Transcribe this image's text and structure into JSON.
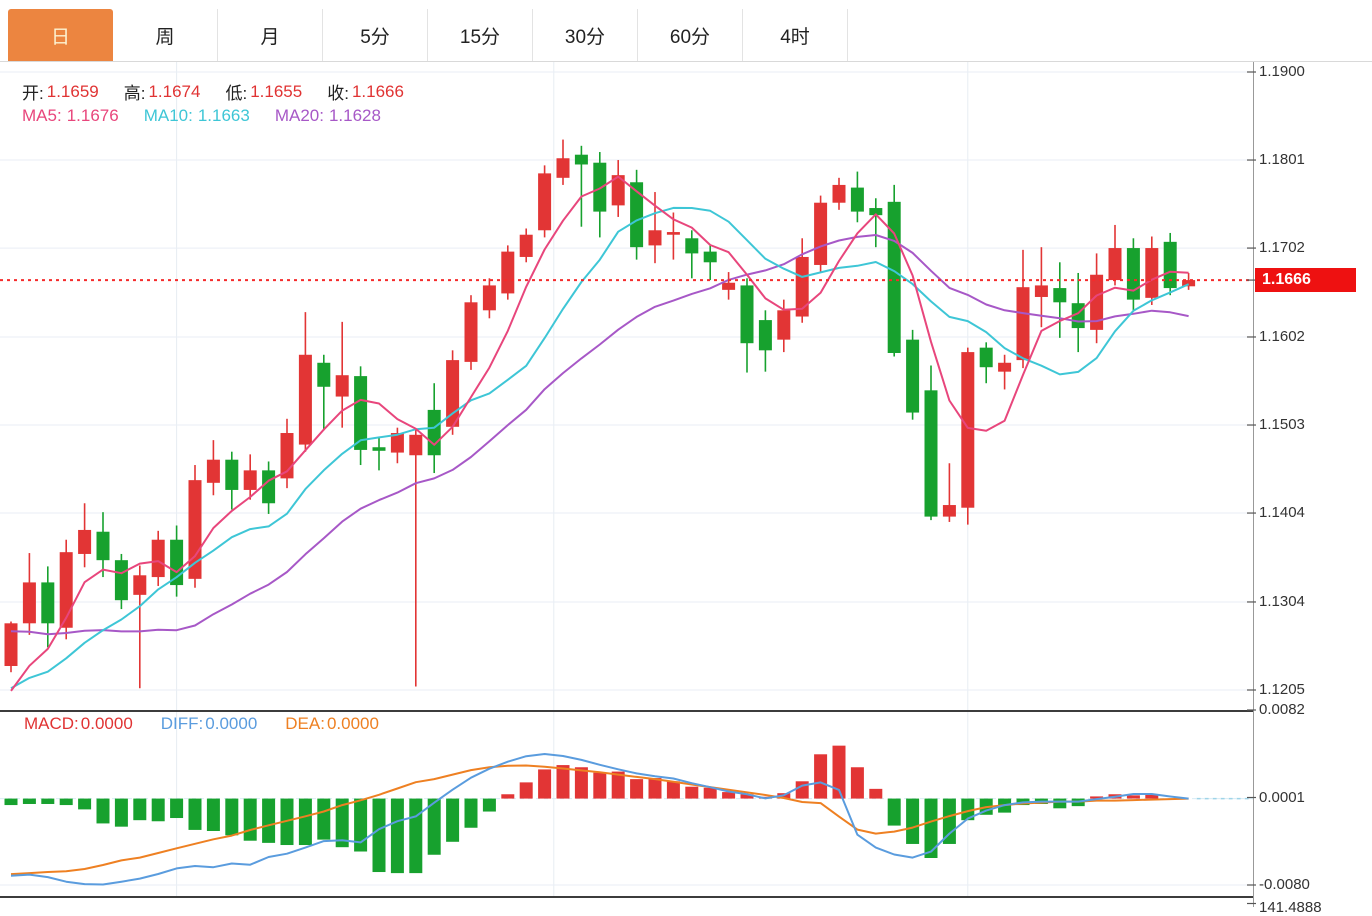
{
  "tabbar": {
    "active_key": "day",
    "tabs": [
      {
        "key": "day",
        "label": "日"
      },
      {
        "key": "week",
        "label": "周"
      },
      {
        "key": "month",
        "label": "月"
      },
      {
        "key": "5min",
        "label": "5分"
      },
      {
        "key": "15min",
        "label": "15分"
      },
      {
        "key": "30min",
        "label": "30分"
      },
      {
        "key": "60min",
        "label": "60分"
      },
      {
        "key": "4hour",
        "label": "4时"
      }
    ]
  },
  "legend": {
    "open_label": "开:",
    "open_value": "1.1659",
    "high_label": "高:",
    "high_value": "1.1674",
    "low_label": "低:",
    "low_value": "1.1655",
    "close_label": "收:",
    "close_value": "1.1666",
    "ma5_label": "MA5:",
    "ma5_value": "1.1676",
    "ma10_label": "MA10:",
    "ma10_value": "1.1663",
    "ma20_label": "MA20:",
    "ma20_value": "1.1628"
  },
  "macd_legend": {
    "macd_label": "MACD:",
    "macd_value": "0.0000",
    "diff_label": "DIFF:",
    "diff_value": "0.0000",
    "dea_label": "DEA:",
    "dea_value": "0.0000"
  },
  "price_axis": {
    "labels": [
      "1.1900",
      "1.1801",
      "1.1702",
      "1.1602",
      "1.1503",
      "1.1404",
      "1.1304",
      "1.1205"
    ],
    "values": [
      1.19,
      1.1801,
      1.1702,
      1.1602,
      1.1503,
      1.1404,
      1.1304,
      1.1205
    ],
    "current_label": "1.1666",
    "current_value": 1.1666
  },
  "macd_axis": {
    "labels": [
      "0.0082",
      "0.0001",
      "-0.0080"
    ],
    "values": [
      0.0082,
      0.0001,
      -0.008
    ],
    "clipped_label": "141.4888"
  },
  "colors": {
    "up": "#e23535",
    "down": "#17a12e",
    "ma5": "#e8467c",
    "ma10": "#3ec6d6",
    "ma20": "#a758c7",
    "diff": "#5a9cde",
    "dea": "#ee8022",
    "price_line": "#f52b2b",
    "badge_bg": "#ee1111",
    "grid": "#e9eef5",
    "vgrid": "#e7ecf2",
    "axis_line": "#999999",
    "separator": "#3c3c3c",
    "tick": "#555555",
    "zero_dash": "#9fd4e8"
  },
  "chart_data": {
    "type": "candlestick_with_macd",
    "timeframe": "日",
    "price_axis_range": [
      1.1205,
      1.19
    ],
    "macd_axis_range": [
      -0.008,
      0.0082
    ],
    "current_price": 1.1666,
    "time_gridline_indices": [
      9,
      29.5,
      52
    ],
    "candles_ohlc": [
      [
        1.1232,
        1.1282,
        1.1225,
        1.128
      ],
      [
        1.128,
        1.1359,
        1.1267,
        1.1326
      ],
      [
        1.1326,
        1.1344,
        1.1253,
        1.128
      ],
      [
        1.1275,
        1.1374,
        1.1262,
        1.136
      ],
      [
        1.1358,
        1.1415,
        1.1343,
        1.1385
      ],
      [
        1.1383,
        1.1405,
        1.1332,
        1.1351
      ],
      [
        1.1351,
        1.1358,
        1.1296,
        1.1306
      ],
      [
        1.1312,
        1.1345,
        1.1207,
        1.1334
      ],
      [
        1.1332,
        1.1384,
        1.1322,
        1.1374
      ],
      [
        1.1374,
        1.139,
        1.131,
        1.1323
      ],
      [
        1.133,
        1.1458,
        1.132,
        1.1441
      ],
      [
        1.1438,
        1.1486,
        1.1424,
        1.1464
      ],
      [
        1.1464,
        1.1473,
        1.1408,
        1.143
      ],
      [
        1.143,
        1.147,
        1.1419,
        1.1452
      ],
      [
        1.1452,
        1.1462,
        1.1403,
        1.1415
      ],
      [
        1.1443,
        1.151,
        1.1432,
        1.1494
      ],
      [
        1.1481,
        1.163,
        1.1473,
        1.1582
      ],
      [
        1.1573,
        1.1582,
        1.1497,
        1.1546
      ],
      [
        1.1535,
        1.1619,
        1.15,
        1.1559
      ],
      [
        1.1558,
        1.1569,
        1.1458,
        1.1475
      ],
      [
        1.1478,
        1.149,
        1.1452,
        1.1474
      ],
      [
        1.1472,
        1.15,
        1.146,
        1.1494
      ],
      [
        1.1469,
        1.1498,
        1.1209,
        1.1492
      ],
      [
        1.152,
        1.155,
        1.1449,
        1.1469
      ],
      [
        1.1501,
        1.1587,
        1.1492,
        1.1576
      ],
      [
        1.1574,
        1.1649,
        1.1565,
        1.1641
      ],
      [
        1.1632,
        1.1668,
        1.1623,
        1.166
      ],
      [
        1.1651,
        1.1705,
        1.1644,
        1.1698
      ],
      [
        1.1692,
        1.1724,
        1.1686,
        1.1717
      ],
      [
        1.1722,
        1.1795,
        1.1714,
        1.1786
      ],
      [
        1.1781,
        1.1824,
        1.1773,
        1.1803
      ],
      [
        1.1807,
        1.1817,
        1.1726,
        1.1796
      ],
      [
        1.1798,
        1.181,
        1.1714,
        1.1743
      ],
      [
        1.175,
        1.1801,
        1.1737,
        1.1784
      ],
      [
        1.1776,
        1.179,
        1.1689,
        1.1703
      ],
      [
        1.1705,
        1.1765,
        1.1685,
        1.1722
      ],
      [
        1.1717,
        1.1742,
        1.1689,
        1.172
      ],
      [
        1.1713,
        1.1722,
        1.1668,
        1.1696
      ],
      [
        1.1698,
        1.1705,
        1.1666,
        1.1686
      ],
      [
        1.1655,
        1.1675,
        1.1644,
        1.1663
      ],
      [
        1.166,
        1.1668,
        1.1562,
        1.1595
      ],
      [
        1.1621,
        1.1632,
        1.1563,
        1.1587
      ],
      [
        1.1599,
        1.1644,
        1.1585,
        1.1632
      ],
      [
        1.1625,
        1.1713,
        1.1618,
        1.1692
      ],
      [
        1.1683,
        1.1761,
        1.1675,
        1.1753
      ],
      [
        1.1753,
        1.1781,
        1.1745,
        1.1773
      ],
      [
        1.177,
        1.1788,
        1.1731,
        1.1743
      ],
      [
        1.1747,
        1.1758,
        1.1703,
        1.1739
      ],
      [
        1.1754,
        1.1773,
        1.158,
        1.1584
      ],
      [
        1.1599,
        1.161,
        1.1509,
        1.1517
      ],
      [
        1.1542,
        1.157,
        1.1396,
        1.14
      ],
      [
        1.14,
        1.146,
        1.1394,
        1.1413
      ],
      [
        1.141,
        1.159,
        1.1391,
        1.1585
      ],
      [
        1.159,
        1.1596,
        1.155,
        1.1568
      ],
      [
        1.1563,
        1.1582,
        1.1543,
        1.1573
      ],
      [
        1.1576,
        1.17,
        1.1567,
        1.1658
      ],
      [
        1.1647,
        1.1703,
        1.1613,
        1.166
      ],
      [
        1.1657,
        1.1686,
        1.1601,
        1.1641
      ],
      [
        1.164,
        1.1674,
        1.1585,
        1.1612
      ],
      [
        1.161,
        1.1696,
        1.1595,
        1.1672
      ],
      [
        1.1666,
        1.1728,
        1.166,
        1.1702
      ],
      [
        1.1702,
        1.1713,
        1.1632,
        1.1644
      ],
      [
        1.1646,
        1.1715,
        1.1638,
        1.1702
      ],
      [
        1.1709,
        1.1719,
        1.1649,
        1.1657
      ],
      [
        1.1659,
        1.1674,
        1.1655,
        1.1666
      ]
    ],
    "ma_seed_closes": [
      1.1335,
      1.1335,
      1.1335,
      1.1335,
      1.1335,
      1.1335,
      1.1335,
      1.1335,
      1.1335,
      1.1335,
      1.121,
      1.121,
      1.121,
      1.121,
      1.121,
      1.1185,
      1.1185,
      1.1185,
      1.1185
    ],
    "ma_periods": [
      5,
      10,
      20
    ],
    "macd_histogram": [
      -0.0006,
      -0.0005,
      -0.0005,
      -0.0006,
      -0.001,
      -0.0023,
      -0.0026,
      -0.002,
      -0.0021,
      -0.0018,
      -0.0029,
      -0.003,
      -0.0034,
      -0.0039,
      -0.0041,
      -0.0043,
      -0.0043,
      -0.0038,
      -0.0045,
      -0.0049,
      -0.0068,
      -0.0069,
      -0.0069,
      -0.0052,
      -0.004,
      -0.0027,
      -0.0012,
      0.0004,
      0.0015,
      0.0027,
      0.0031,
      0.0029,
      0.0024,
      0.0025,
      0.0018,
      0.0019,
      0.0016,
      0.0011,
      0.001,
      0.0006,
      0.0004,
      0.0001,
      0.0005,
      0.0016,
      0.0041,
      0.0049,
      0.0029,
      0.0009,
      -0.0025,
      -0.0042,
      -0.0055,
      -0.0042,
      -0.002,
      -0.0015,
      -0.0013,
      -0.0006,
      -0.0005,
      -0.0009,
      -0.0007,
      0.0002,
      0.0004,
      0.0003,
      0.0004,
      0.0,
      0.0
    ],
    "diff_line": [
      -0.00715,
      -0.00704,
      -0.00727,
      -0.00769,
      -0.00792,
      -0.00795,
      -0.00769,
      -0.00741,
      -0.00698,
      -0.00646,
      -0.00624,
      -0.00635,
      -0.00601,
      -0.00612,
      -0.00541,
      -0.0051,
      -0.00454,
      -0.00394,
      -0.00385,
      -0.00406,
      -0.00283,
      -0.00209,
      -0.00165,
      -0.00038,
      0.00082,
      0.00193,
      0.00277,
      0.00341,
      0.00392,
      0.00413,
      0.00394,
      0.00358,
      0.00313,
      0.00271,
      0.00233,
      0.00207,
      0.00186,
      0.00142,
      0.00105,
      0.00066,
      0.0004,
      2e-05,
      0.0003,
      0.0012,
      0.0015,
      0.0008,
      -0.00334,
      -0.00454,
      -0.00518,
      -0.00546,
      -0.00491,
      -0.00324,
      -0.00185,
      -0.00111,
      -0.0006,
      -0.00035,
      -0.00028,
      -0.00028,
      -0.00028,
      -5e-05,
      0.00017,
      0.00042,
      0.00042,
      0.00019,
      0.0
    ],
    "dea_line": [
      -0.00699,
      -0.0069,
      -0.0068,
      -0.00673,
      -0.00652,
      -0.00615,
      -0.00572,
      -0.00546,
      -0.00504,
      -0.0046,
      -0.00419,
      -0.00377,
      -0.00343,
      -0.00291,
      -0.00247,
      -0.00206,
      -0.00164,
      -0.0012,
      -0.0006,
      -0.00016,
      0.00035,
      0.00093,
      0.00152,
      0.0018,
      0.00222,
      0.00264,
      0.0029,
      0.00303,
      0.00306,
      0.00294,
      0.00278,
      0.00261,
      0.00243,
      0.00222,
      0.00201,
      0.0018,
      0.00155,
      0.0013,
      0.00106,
      0.00081,
      0.00057,
      0.00033,
      5e-05,
      -0.00032,
      -0.00042,
      -0.00167,
      -0.00287,
      -0.00324,
      -0.00306,
      -0.00269,
      -0.00213,
      -0.00162,
      -0.00116,
      -0.00079,
      -0.0006,
      -0.00046,
      -0.00037,
      -0.00028,
      -0.00028,
      -0.00019,
      -0.00019,
      -0.00014,
      -9e-05,
      -5e-05,
      0.0
    ]
  }
}
